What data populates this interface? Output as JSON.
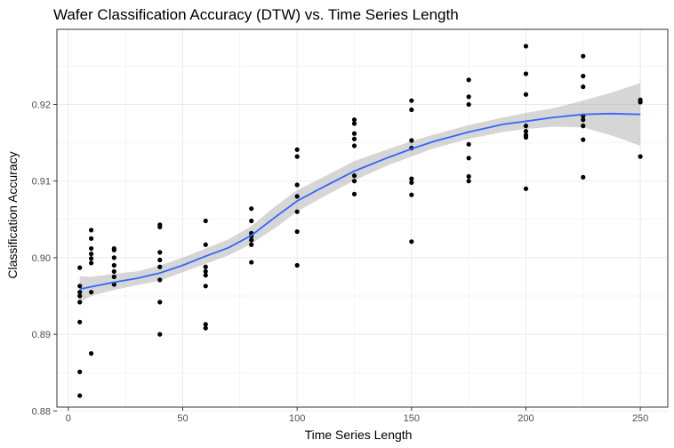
{
  "chart_data": {
    "type": "scatter",
    "title": "Wafer Classification Accuracy (DTW) vs. Time Series Length",
    "xlabel": "Time Series Length",
    "ylabel": "Classification Accuracy",
    "xlim": [
      -5,
      262
    ],
    "ylim": [
      0.8805,
      0.9298
    ],
    "x_ticks": [
      0,
      50,
      100,
      150,
      200,
      250
    ],
    "x_tick_labels": [
      "0",
      "50",
      "100",
      "150",
      "200",
      "250"
    ],
    "y_ticks": [
      0.88,
      0.89,
      0.9,
      0.91,
      0.92
    ],
    "y_tick_labels": [
      "0.88",
      "0.89",
      "0.90",
      "0.91",
      "0.92"
    ],
    "grid": true,
    "colors": {
      "points": "#000000",
      "smooth_line": "#3366ff",
      "ribbon": "#999999",
      "grid": "#ebebeb",
      "border": "#333333"
    },
    "points": [
      [
        5,
        0.8987
      ],
      [
        5,
        0.8963
      ],
      [
        5,
        0.8955
      ],
      [
        5,
        0.895
      ],
      [
        5,
        0.8942
      ],
      [
        5,
        0.8916
      ],
      [
        5,
        0.8851
      ],
      [
        5,
        0.882
      ],
      [
        10,
        0.9036
      ],
      [
        10,
        0.9025
      ],
      [
        10,
        0.9012
      ],
      [
        10,
        0.9005
      ],
      [
        10,
        0.8999
      ],
      [
        10,
        0.8993
      ],
      [
        10,
        0.8955
      ],
      [
        10,
        0.8875
      ],
      [
        20,
        0.9012
      ],
      [
        20,
        0.901
      ],
      [
        20,
        0.9
      ],
      [
        20,
        0.899
      ],
      [
        20,
        0.8982
      ],
      [
        20,
        0.8975
      ],
      [
        20,
        0.8965
      ],
      [
        40,
        0.9043
      ],
      [
        40,
        0.904
      ],
      [
        40,
        0.9007
      ],
      [
        40,
        0.8997
      ],
      [
        40,
        0.8988
      ],
      [
        40,
        0.8971
      ],
      [
        40,
        0.8942
      ],
      [
        40,
        0.89
      ],
      [
        60,
        0.9048
      ],
      [
        60,
        0.9017
      ],
      [
        60,
        0.8988
      ],
      [
        60,
        0.8982
      ],
      [
        60,
        0.8977
      ],
      [
        60,
        0.8963
      ],
      [
        60,
        0.8913
      ],
      [
        60,
        0.8908
      ],
      [
        80,
        0.9064
      ],
      [
        80,
        0.9048
      ],
      [
        80,
        0.9032
      ],
      [
        80,
        0.9028
      ],
      [
        80,
        0.9023
      ],
      [
        80,
        0.9017
      ],
      [
        80,
        0.8994
      ],
      [
        100,
        0.9141
      ],
      [
        100,
        0.9132
      ],
      [
        100,
        0.9095
      ],
      [
        100,
        0.908
      ],
      [
        100,
        0.906
      ],
      [
        100,
        0.9034
      ],
      [
        100,
        0.899
      ],
      [
        125,
        0.918
      ],
      [
        125,
        0.9175
      ],
      [
        125,
        0.9162
      ],
      [
        125,
        0.9155
      ],
      [
        125,
        0.9146
      ],
      [
        125,
        0.9107
      ],
      [
        125,
        0.91
      ],
      [
        125,
        0.9083
      ],
      [
        150,
        0.9205
      ],
      [
        150,
        0.9193
      ],
      [
        150,
        0.9153
      ],
      [
        150,
        0.9143
      ],
      [
        150,
        0.9103
      ],
      [
        150,
        0.9098
      ],
      [
        150,
        0.9082
      ],
      [
        150,
        0.9021
      ],
      [
        175,
        0.9232
      ],
      [
        175,
        0.921
      ],
      [
        175,
        0.92
      ],
      [
        175,
        0.9148
      ],
      [
        175,
        0.913
      ],
      [
        175,
        0.9106
      ],
      [
        175,
        0.91
      ],
      [
        200,
        0.9276
      ],
      [
        200,
        0.924
      ],
      [
        200,
        0.9213
      ],
      [
        200,
        0.9172
      ],
      [
        200,
        0.9165
      ],
      [
        200,
        0.916
      ],
      [
        200,
        0.9157
      ],
      [
        200,
        0.909
      ],
      [
        225,
        0.9263
      ],
      [
        225,
        0.9237
      ],
      [
        225,
        0.9223
      ],
      [
        225,
        0.9185
      ],
      [
        225,
        0.918
      ],
      [
        225,
        0.9172
      ],
      [
        225,
        0.9154
      ],
      [
        225,
        0.9105
      ],
      [
        250,
        0.9206
      ],
      [
        250,
        0.9203
      ],
      [
        250,
        0.9132
      ]
    ],
    "smooth": {
      "x": [
        5,
        10,
        20,
        30,
        40,
        50,
        60,
        70,
        80,
        90,
        100,
        110,
        125,
        140,
        150,
        160,
        175,
        190,
        200,
        212,
        225,
        237,
        250
      ],
      "y": [
        0.8959,
        0.8962,
        0.8968,
        0.8973,
        0.898,
        0.899,
        0.9002,
        0.9013,
        0.9029,
        0.9052,
        0.9074,
        0.909,
        0.9113,
        0.9131,
        0.9142,
        0.9152,
        0.9164,
        0.9174,
        0.9178,
        0.9183,
        0.9187,
        0.9188,
        0.9187
      ],
      "lo": [
        0.8942,
        0.895,
        0.8958,
        0.8964,
        0.897,
        0.8981,
        0.8992,
        0.9003,
        0.9018,
        0.9038,
        0.906,
        0.9077,
        0.9101,
        0.9121,
        0.9132,
        0.9143,
        0.9155,
        0.9164,
        0.9168,
        0.9171,
        0.917,
        0.916,
        0.9146
      ],
      "hi": [
        0.8976,
        0.8975,
        0.8979,
        0.8982,
        0.899,
        0.9,
        0.9012,
        0.9024,
        0.9041,
        0.9066,
        0.9088,
        0.9103,
        0.9126,
        0.9142,
        0.9152,
        0.9161,
        0.9173,
        0.9183,
        0.9189,
        0.9195,
        0.9205,
        0.9215,
        0.9228
      ]
    }
  }
}
